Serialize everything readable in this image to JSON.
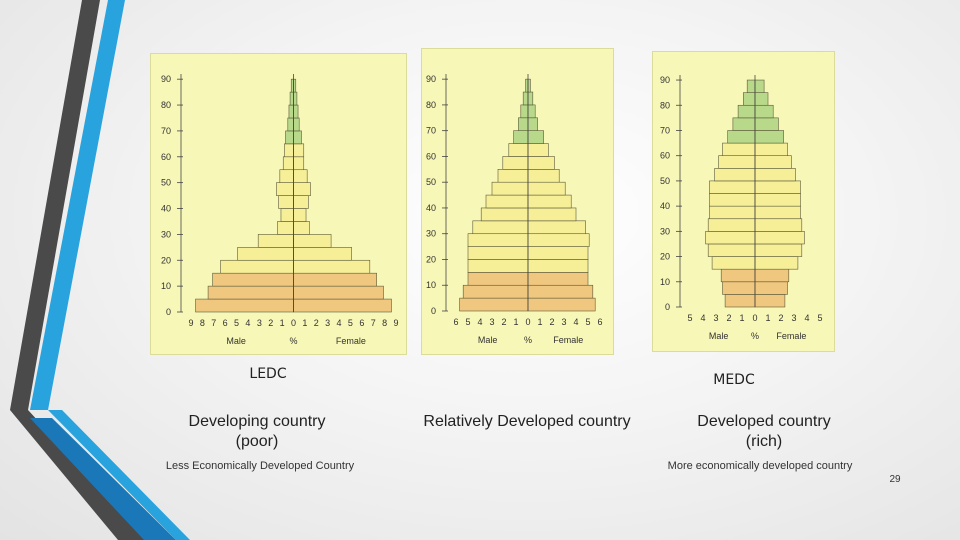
{
  "slide": {
    "ledc_label": "LEDC",
    "medc_label": "MEDC",
    "caption_left_line1": "Developing  country",
    "caption_left_line2": "(poor)",
    "caption_mid": "Relatively Developed country",
    "caption_right_line1": "Developed country",
    "caption_right_line2": "(rich)",
    "note_left": "Less Economically Developed Country",
    "note_right": "More economically developed  country",
    "page_number": "29"
  },
  "colors": {
    "panel_bg": "#f7f7b8",
    "band_dependent_young": "#f0c77e",
    "band_working": "#f7ef98",
    "band_elderly": "#b9d98a",
    "deco_dark": "#4a4a4a",
    "deco_blue": "#29a3de",
    "deco_blue_dark": "#1b78b8"
  },
  "chart_data": [
    {
      "type": "bar",
      "subtype": "population-pyramid",
      "x_label_left": "Male",
      "x_label_center": "%",
      "x_label_right": "Female",
      "x_ticks": [
        9,
        8,
        7,
        6,
        5,
        4,
        3,
        2,
        1,
        0,
        1,
        2,
        3,
        4,
        5,
        6,
        7,
        8,
        9
      ],
      "xlim": [
        -9,
        9
      ],
      "y_ticks": [
        0,
        10,
        20,
        30,
        40,
        50,
        60,
        70,
        80,
        90
      ],
      "ylim": [
        0,
        92
      ],
      "band_height": 5,
      "bands": [
        {
          "age": 0,
          "male": 8.6,
          "female": 8.6
        },
        {
          "age": 5,
          "male": 7.5,
          "female": 7.9
        },
        {
          "age": 10,
          "male": 7.1,
          "female": 7.3
        },
        {
          "age": 15,
          "male": 6.4,
          "female": 6.7
        },
        {
          "age": 20,
          "male": 4.9,
          "female": 5.1
        },
        {
          "age": 25,
          "male": 3.1,
          "female": 3.3
        },
        {
          "age": 30,
          "male": 1.4,
          "female": 1.4
        },
        {
          "age": 35,
          "male": 1.1,
          "female": 1.1
        },
        {
          "age": 40,
          "male": 1.3,
          "female": 1.3
        },
        {
          "age": 45,
          "male": 1.5,
          "female": 1.5
        },
        {
          "age": 50,
          "male": 1.2,
          "female": 1.2
        },
        {
          "age": 55,
          "male": 0.9,
          "female": 0.9
        },
        {
          "age": 60,
          "male": 0.8,
          "female": 0.9
        },
        {
          "age": 65,
          "male": 0.7,
          "female": 0.7
        },
        {
          "age": 70,
          "male": 0.5,
          "female": 0.5
        },
        {
          "age": 75,
          "male": 0.4,
          "female": 0.4
        },
        {
          "age": 80,
          "male": 0.3,
          "female": 0.3
        },
        {
          "age": 85,
          "male": 0.2,
          "female": 0.2
        }
      ]
    },
    {
      "type": "bar",
      "subtype": "population-pyramid",
      "x_label_left": "Male",
      "x_label_center": "%",
      "x_label_right": "Female",
      "x_ticks": [
        6,
        5,
        4,
        3,
        2,
        1,
        0,
        1,
        2,
        3,
        4,
        5,
        6
      ],
      "xlim": [
        -6,
        6
      ],
      "y_ticks": [
        0,
        10,
        20,
        30,
        40,
        50,
        60,
        70,
        80,
        90
      ],
      "ylim": [
        0,
        92
      ],
      "band_height": 5,
      "bands": [
        {
          "age": 0,
          "male": 5.7,
          "female": 5.6
        },
        {
          "age": 5,
          "male": 5.4,
          "female": 5.4
        },
        {
          "age": 10,
          "male": 5.0,
          "female": 5.0
        },
        {
          "age": 15,
          "male": 5.0,
          "female": 5.0
        },
        {
          "age": 20,
          "male": 5.0,
          "female": 5.0
        },
        {
          "age": 25,
          "male": 5.0,
          "female": 5.1
        },
        {
          "age": 30,
          "male": 4.6,
          "female": 4.8
        },
        {
          "age": 35,
          "male": 3.9,
          "female": 4.0
        },
        {
          "age": 40,
          "male": 3.5,
          "female": 3.6
        },
        {
          "age": 45,
          "male": 3.0,
          "female": 3.1
        },
        {
          "age": 50,
          "male": 2.5,
          "female": 2.6
        },
        {
          "age": 55,
          "male": 2.1,
          "female": 2.2
        },
        {
          "age": 60,
          "male": 1.6,
          "female": 1.7
        },
        {
          "age": 65,
          "male": 1.2,
          "female": 1.3
        },
        {
          "age": 70,
          "male": 0.8,
          "female": 0.8
        },
        {
          "age": 75,
          "male": 0.6,
          "female": 0.6
        },
        {
          "age": 80,
          "male": 0.4,
          "female": 0.4
        },
        {
          "age": 85,
          "male": 0.2,
          "female": 0.2
        }
      ]
    },
    {
      "type": "bar",
      "subtype": "population-pyramid",
      "x_label_left": "Male",
      "x_label_center": "%",
      "x_label_right": "Female",
      "x_ticks": [
        5,
        4,
        3,
        2,
        1,
        0,
        1,
        2,
        3,
        4,
        5
      ],
      "xlim": [
        -5,
        5
      ],
      "y_ticks": [
        0,
        10,
        20,
        30,
        40,
        50,
        60,
        70,
        80,
        90
      ],
      "ylim": [
        0,
        92
      ],
      "band_height": 5,
      "bands": [
        {
          "age": 0,
          "male": 2.3,
          "female": 2.3
        },
        {
          "age": 5,
          "male": 2.5,
          "female": 2.5
        },
        {
          "age": 10,
          "male": 2.6,
          "female": 2.6
        },
        {
          "age": 15,
          "male": 3.3,
          "female": 3.3
        },
        {
          "age": 20,
          "male": 3.6,
          "female": 3.6
        },
        {
          "age": 25,
          "male": 3.8,
          "female": 3.8
        },
        {
          "age": 30,
          "male": 3.6,
          "female": 3.6
        },
        {
          "age": 35,
          "male": 3.5,
          "female": 3.5
        },
        {
          "age": 40,
          "male": 3.5,
          "female": 3.5
        },
        {
          "age": 45,
          "male": 3.5,
          "female": 3.5
        },
        {
          "age": 50,
          "male": 3.1,
          "female": 3.1
        },
        {
          "age": 55,
          "male": 2.8,
          "female": 2.8
        },
        {
          "age": 60,
          "male": 2.5,
          "female": 2.5
        },
        {
          "age": 65,
          "male": 2.1,
          "female": 2.2
        },
        {
          "age": 70,
          "male": 1.7,
          "female": 1.8
        },
        {
          "age": 75,
          "male": 1.3,
          "female": 1.4
        },
        {
          "age": 80,
          "male": 0.9,
          "female": 1.0
        },
        {
          "age": 85,
          "male": 0.6,
          "female": 0.7
        }
      ]
    }
  ]
}
